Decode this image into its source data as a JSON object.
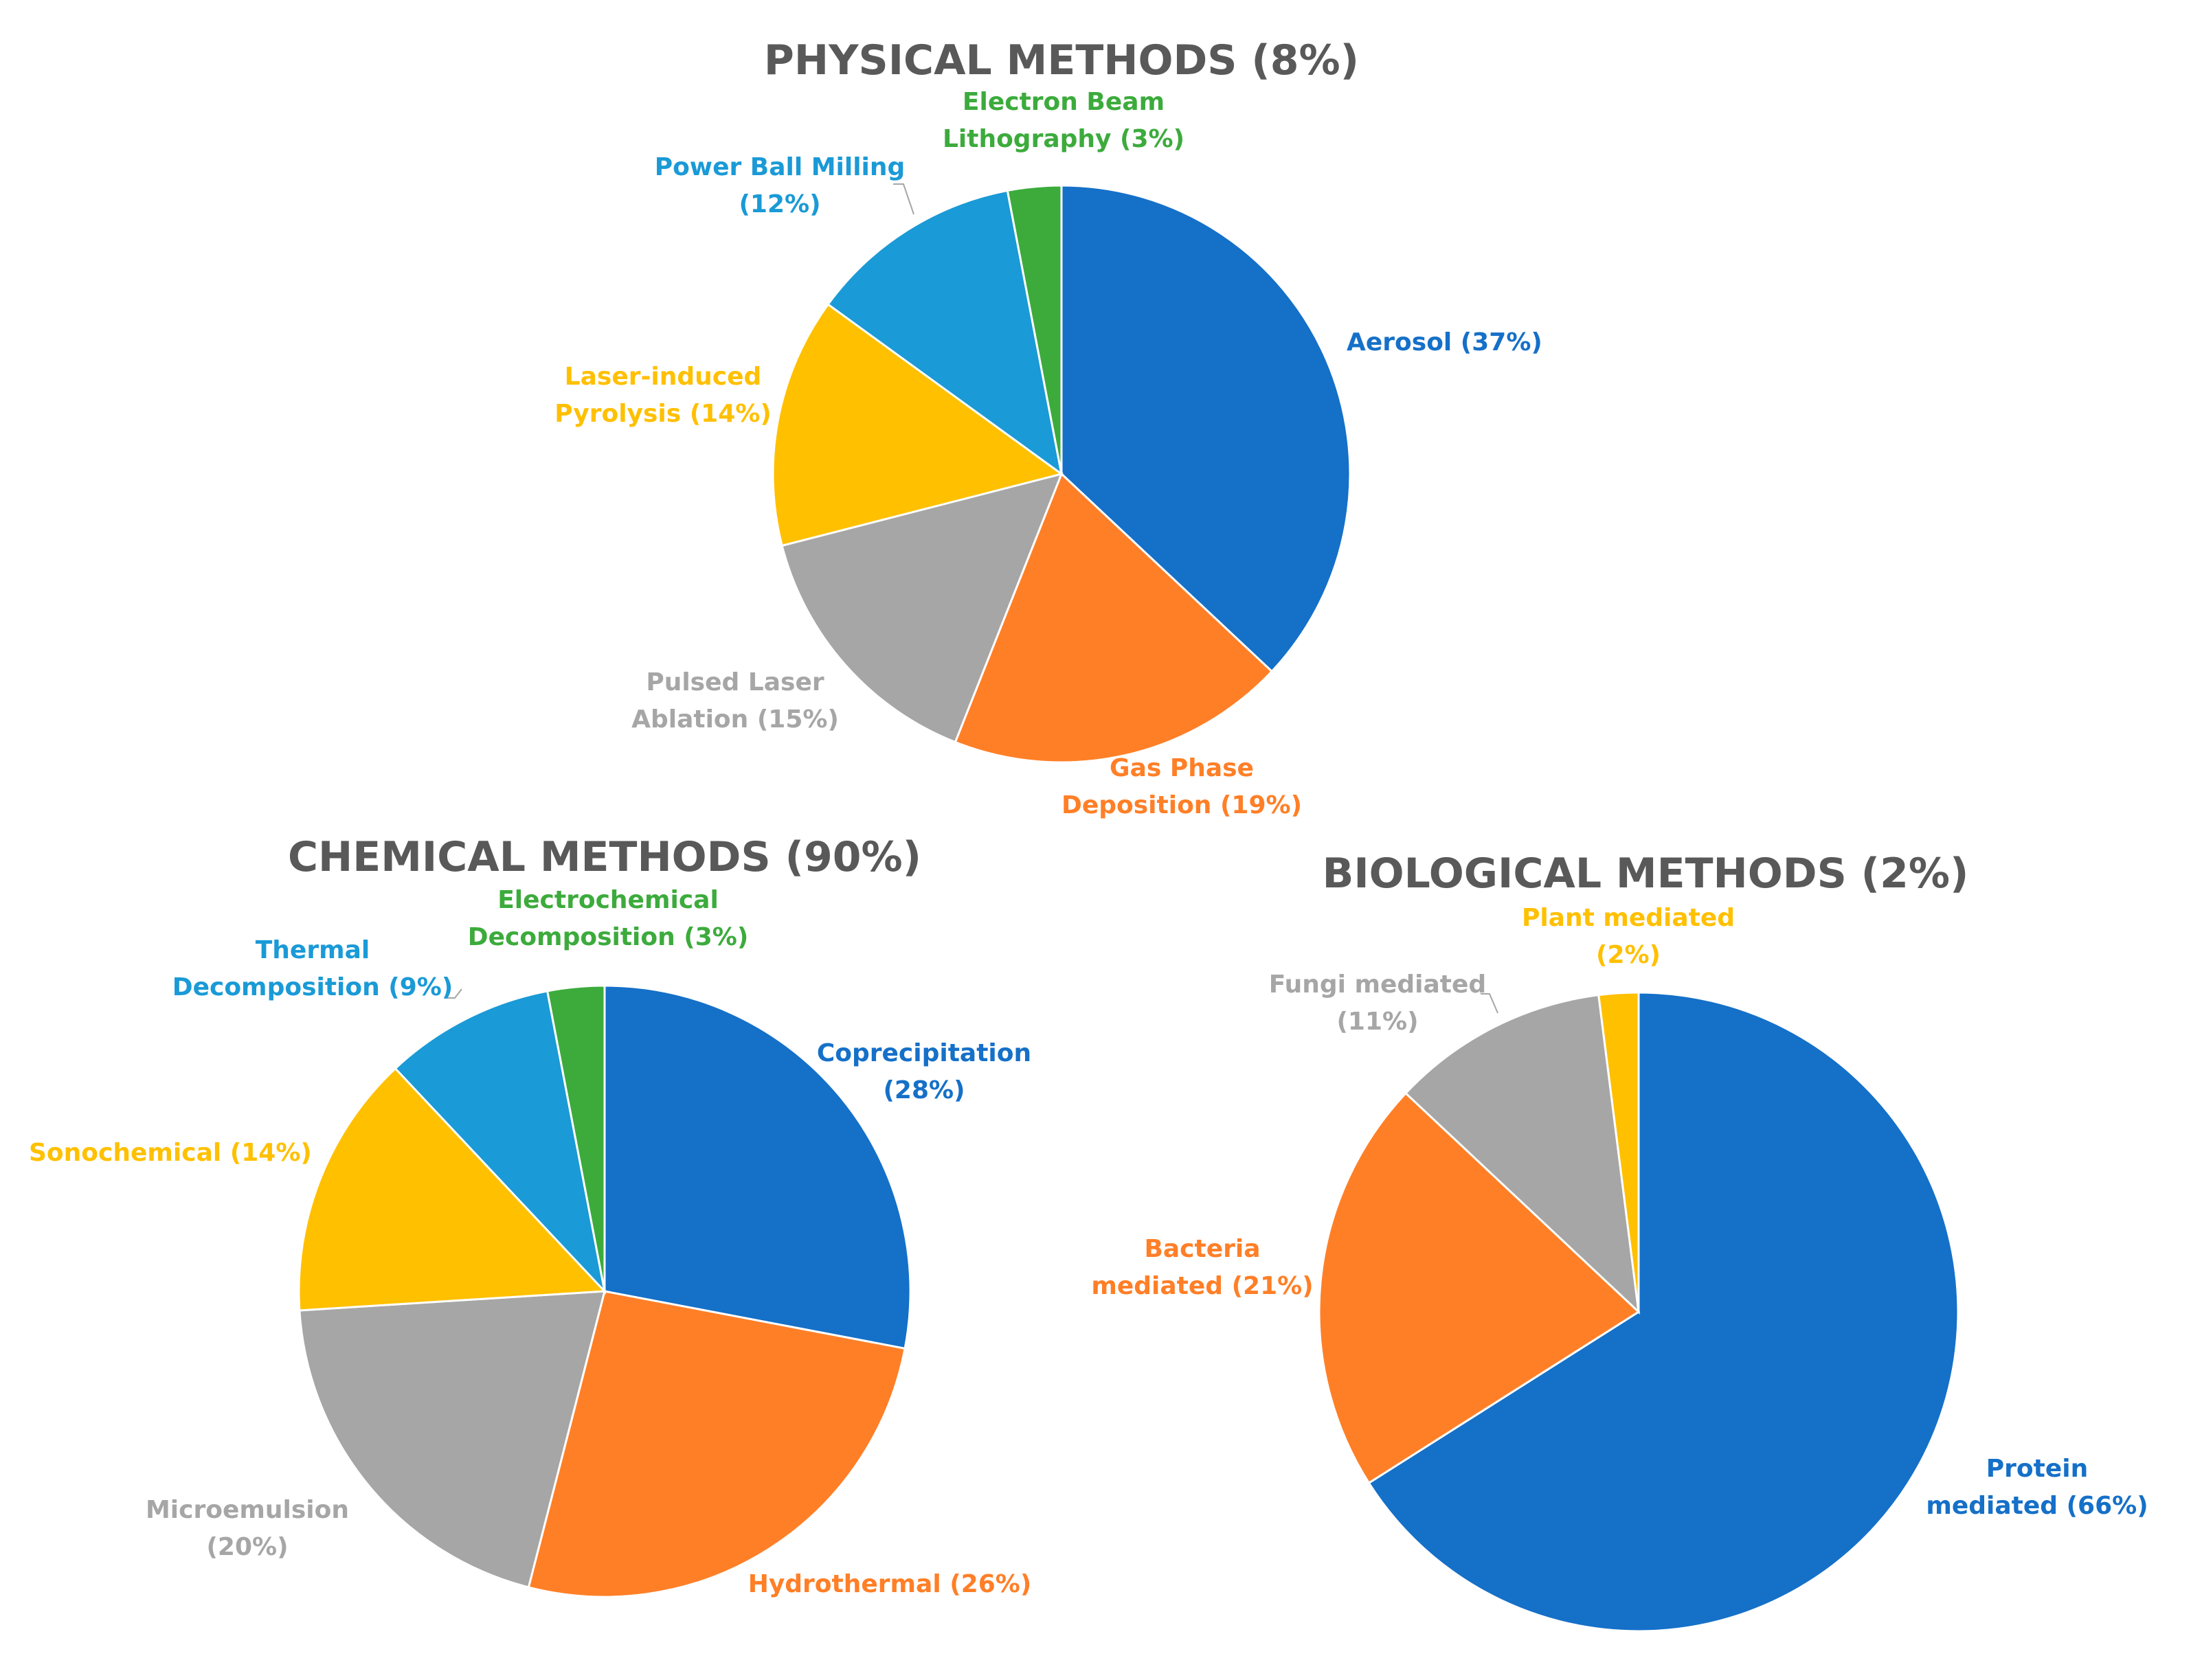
{
  "chart_data": [
    {
      "type": "pie",
      "title": "PHYSICAL METHODS (8%)",
      "slices": [
        {
          "label_lines": [
            "Aerosol (37%)"
          ],
          "value": 37,
          "color": "#1570C8"
        },
        {
          "label_lines": [
            "Gas Phase",
            "Deposition (19%)"
          ],
          "value": 19,
          "color": "#FF7F27"
        },
        {
          "label_lines": [
            "Pulsed Laser",
            "Ablation (15%)"
          ],
          "value": 15,
          "color": "#A6A6A6"
        },
        {
          "label_lines": [
            "Laser-induced",
            "Pyrolysis (14%)"
          ],
          "value": 14,
          "color": "#FFC000"
        },
        {
          "label_lines": [
            "Power Ball Milling",
            "(12%)"
          ],
          "value": 12,
          "color": "#1A9AD6"
        },
        {
          "label_lines": [
            "Electron Beam",
            "Lithography (3%)"
          ],
          "value": 3,
          "color": "#3CAB3C"
        }
      ]
    },
    {
      "type": "pie",
      "title": "CHEMICAL METHODS (90%)",
      "slices": [
        {
          "label_lines": [
            "Coprecipitation",
            "(28%)"
          ],
          "value": 28,
          "color": "#1570C8"
        },
        {
          "label_lines": [
            "Hydrothermal (26%)"
          ],
          "value": 26,
          "color": "#FF7F27"
        },
        {
          "label_lines": [
            "Microemulsion",
            "(20%)"
          ],
          "value": 20,
          "color": "#A6A6A6"
        },
        {
          "label_lines": [
            "Sonochemical (14%)"
          ],
          "value": 14,
          "color": "#FFC000"
        },
        {
          "label_lines": [
            "Thermal",
            "Decomposition (9%)"
          ],
          "value": 9,
          "color": "#1A9AD6"
        },
        {
          "label_lines": [
            "Electrochemical",
            "Decomposition (3%)"
          ],
          "value": 3,
          "color": "#3CAB3C"
        }
      ]
    },
    {
      "type": "pie",
      "title": "BIOLOGICAL METHODS (2%)",
      "slices": [
        {
          "label_lines": [
            "Protein",
            "mediated (66%)"
          ],
          "value": 66,
          "color": "#1570C8"
        },
        {
          "label_lines": [
            "Bacteria",
            "mediated (21%)"
          ],
          "value": 21,
          "color": "#FF7F27"
        },
        {
          "label_lines": [
            "Fungi mediated",
            "(11%)"
          ],
          "value": 11,
          "color": "#A6A6A6"
        },
        {
          "label_lines": [
            "Plant mediated",
            "(2%)"
          ],
          "value": 2,
          "color": "#FFC000"
        }
      ]
    }
  ]
}
